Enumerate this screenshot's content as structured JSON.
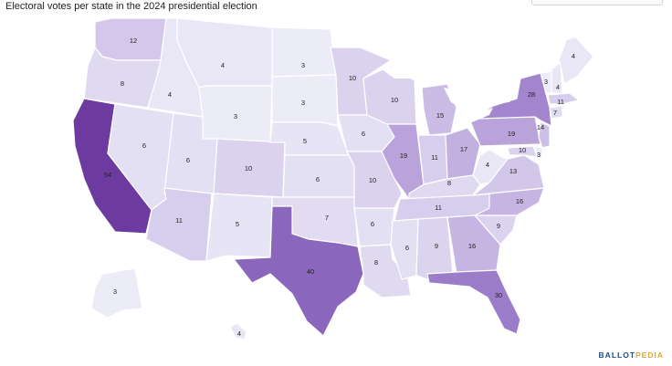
{
  "title": "Electoral votes per state in the 2024 presidential election",
  "logo": {
    "part1": "BALLOT",
    "part2": "PEDIA"
  },
  "colors": {
    "v3": "#ecebf8",
    "v4": "#e9e7f6",
    "v5": "#e7e4f5",
    "v6": "#e4e0f3",
    "v7": "#e2dcf2",
    "v8": "#e0daf1",
    "v9": "#dcd4ef",
    "v10": "#dbd2ee",
    "v11": "#d7cdec",
    "v12": "#d4c8ea",
    "v13": "#d2c6e9",
    "v14": "#cdbfe6",
    "v15": "#cbbce5",
    "v16": "#c6b5e2",
    "v17": "#c2b0e0",
    "v19": "#b9a3da",
    "v28": "#a285cd",
    "v30": "#9b7cc9",
    "v40": "#8b66bd",
    "v54": "#6d3a9f",
    "lake": "#ffffff",
    "stroke": "#ffffff"
  },
  "states": [
    {
      "name": "Washington",
      "votes": "12"
    },
    {
      "name": "Oregon",
      "votes": "8"
    },
    {
      "name": "California",
      "votes": "54"
    },
    {
      "name": "Idaho",
      "votes": "4"
    },
    {
      "name": "Nevada",
      "votes": "6"
    },
    {
      "name": "Montana",
      "votes": "4"
    },
    {
      "name": "Wyoming",
      "votes": "3"
    },
    {
      "name": "Utah",
      "votes": "6"
    },
    {
      "name": "Arizona",
      "votes": "11"
    },
    {
      "name": "Colorado",
      "votes": "10"
    },
    {
      "name": "New Mexico",
      "votes": "5"
    },
    {
      "name": "North Dakota",
      "votes": "3"
    },
    {
      "name": "South Dakota",
      "votes": "3"
    },
    {
      "name": "Nebraska",
      "votes": "5"
    },
    {
      "name": "Kansas",
      "votes": "6"
    },
    {
      "name": "Oklahoma",
      "votes": "7"
    },
    {
      "name": "Texas",
      "votes": "40"
    },
    {
      "name": "Minnesota",
      "votes": "10"
    },
    {
      "name": "Iowa",
      "votes": "6"
    },
    {
      "name": "Missouri",
      "votes": "10"
    },
    {
      "name": "Arkansas",
      "votes": "6"
    },
    {
      "name": "Louisiana",
      "votes": "8"
    },
    {
      "name": "Wisconsin",
      "votes": "10"
    },
    {
      "name": "Illinois",
      "votes": "19"
    },
    {
      "name": "Michigan",
      "votes": "15"
    },
    {
      "name": "Indiana",
      "votes": "11"
    },
    {
      "name": "Ohio",
      "votes": "17"
    },
    {
      "name": "Kentucky",
      "votes": "8"
    },
    {
      "name": "Tennessee",
      "votes": "11"
    },
    {
      "name": "Mississippi",
      "votes": "6"
    },
    {
      "name": "Alabama",
      "votes": "9"
    },
    {
      "name": "Georgia",
      "votes": "16"
    },
    {
      "name": "Florida",
      "votes": "30"
    },
    {
      "name": "South Carolina",
      "votes": "9"
    },
    {
      "name": "North Carolina",
      "votes": "16"
    },
    {
      "name": "Virginia",
      "votes": "13"
    },
    {
      "name": "West Virginia",
      "votes": "4"
    },
    {
      "name": "Pennsylvania",
      "votes": "19"
    },
    {
      "name": "New York",
      "votes": "28"
    },
    {
      "name": "Maryland",
      "votes": "10"
    },
    {
      "name": "Delaware",
      "votes": "3"
    },
    {
      "name": "New Jersey",
      "votes": "14"
    },
    {
      "name": "Connecticut",
      "votes": "7"
    },
    {
      "name": "Massachusetts",
      "votes": "11"
    },
    {
      "name": "Vermont",
      "votes": "3"
    },
    {
      "name": "New Hampshire",
      "votes": "4"
    },
    {
      "name": "Maine",
      "votes": "4"
    },
    {
      "name": "Alaska",
      "votes": "3"
    },
    {
      "name": "Hawaii",
      "votes": "4"
    }
  ]
}
